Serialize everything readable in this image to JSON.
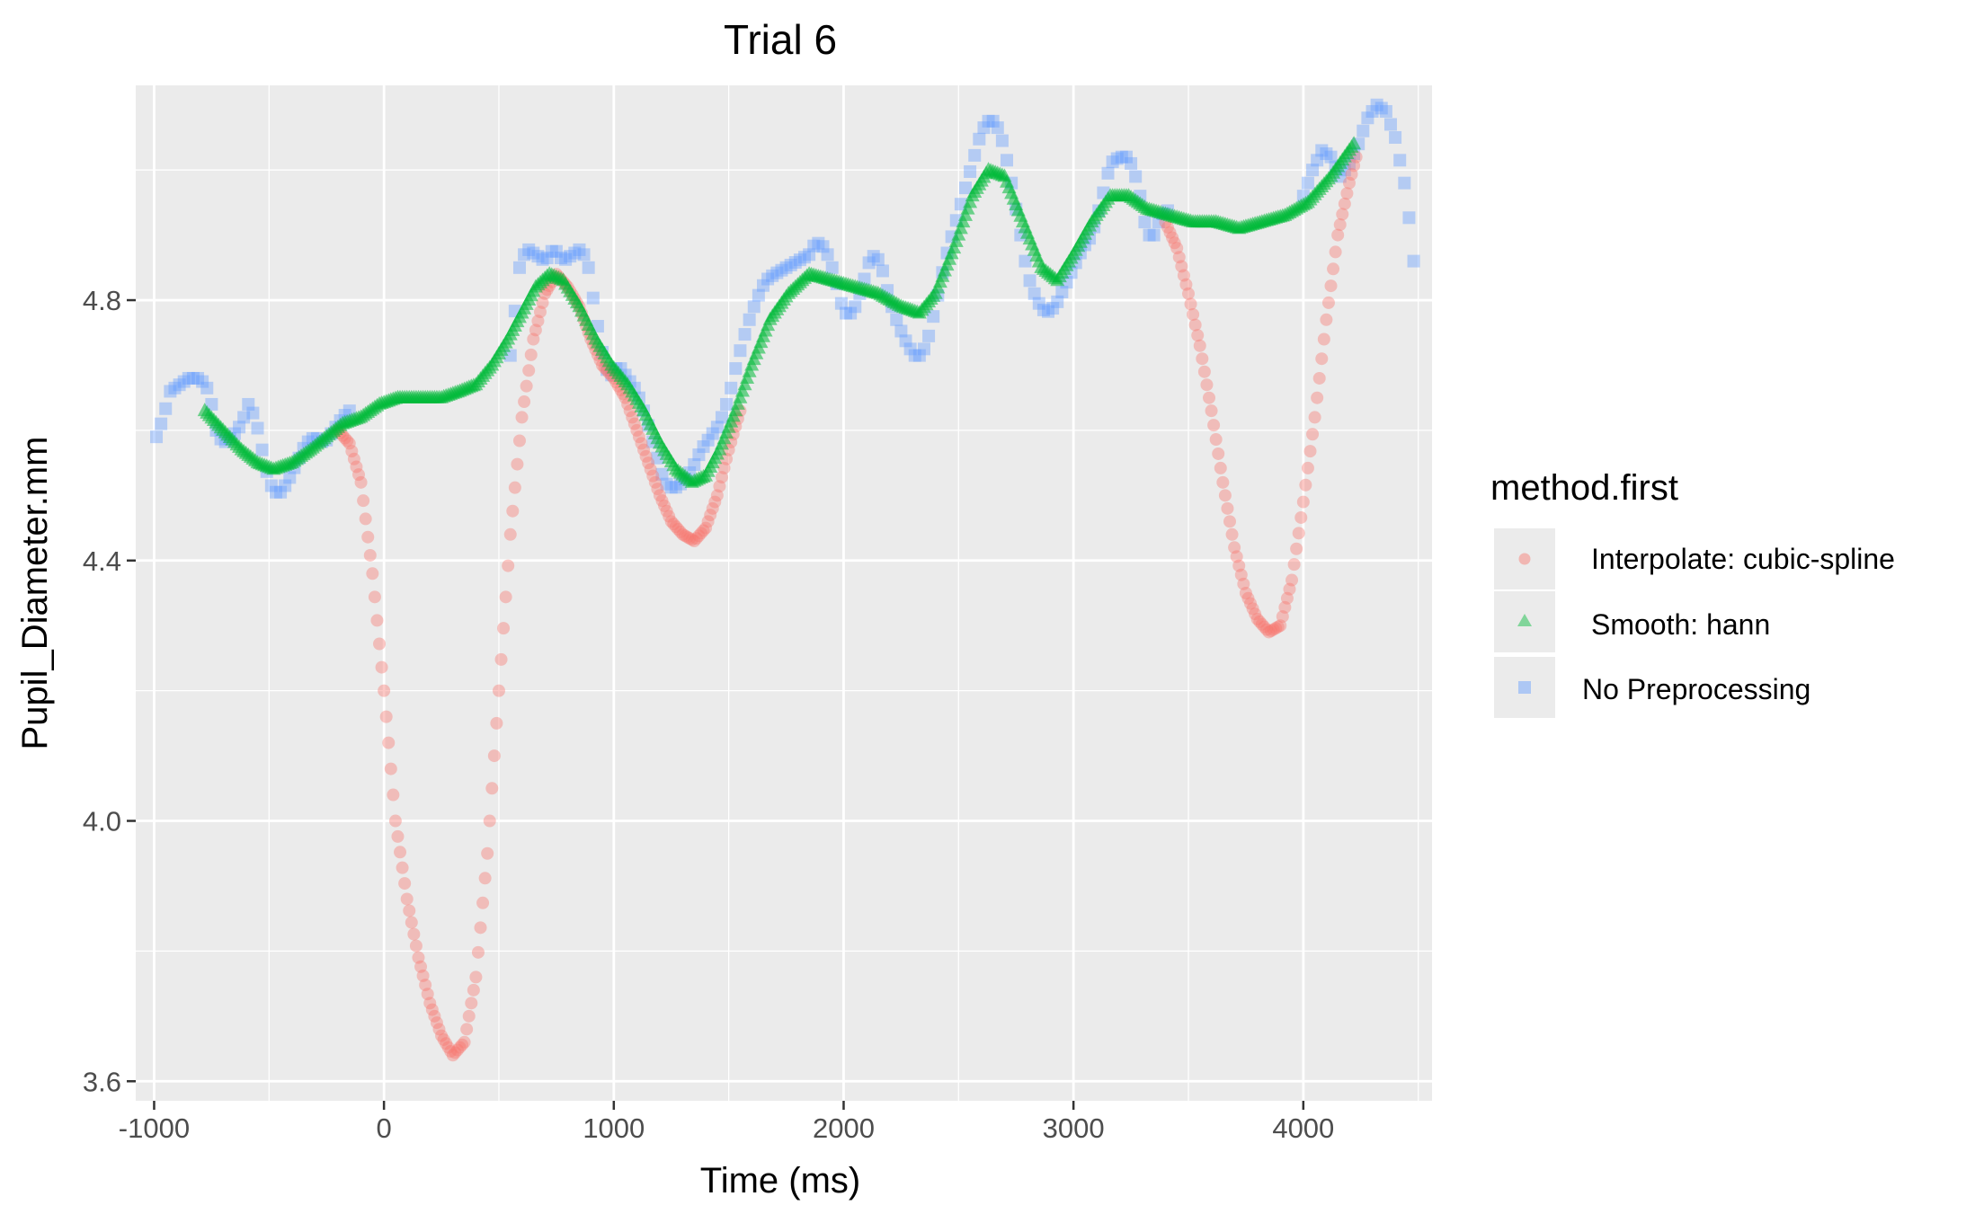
{
  "chart_data": {
    "type": "scatter",
    "title": "Trial 6",
    "xlabel": "Time (ms)",
    "ylabel": "Pupil_Diameter.mm",
    "xlim": [
      -1080,
      4560
    ],
    "ylim": [
      3.57,
      5.13
    ],
    "x_ticks": [
      -1000,
      0,
      1000,
      2000,
      3000,
      4000
    ],
    "x_tick_labels": [
      "-1000",
      "0",
      "1000",
      "2000",
      "3000",
      "4000"
    ],
    "y_ticks": [
      3.6,
      4.0,
      4.4,
      4.8
    ],
    "y_tick_labels": [
      "3.6",
      "4.0",
      "4.4",
      "4.8"
    ],
    "grid": true,
    "legend": {
      "title": "method.first",
      "position": "right",
      "entries": [
        {
          "label": "Interpolate: cubic-spline",
          "shape": "circle",
          "color": "#F8766D"
        },
        {
          "label": "Smooth: hann",
          "shape": "triangle",
          "color": "#00BA38"
        },
        {
          "label": "No Preprocessing",
          "shape": "square",
          "color": "#619CFF"
        }
      ]
    },
    "series": [
      {
        "name": "Interpolate: cubic-spline",
        "color": "#F8766D",
        "shape": "circle",
        "points": [
          [
            -200,
            4.6
          ],
          [
            -150,
            4.58
          ],
          [
            -100,
            4.52
          ],
          [
            -50,
            4.38
          ],
          [
            0,
            4.2
          ],
          [
            50,
            4.0
          ],
          [
            100,
            3.88
          ],
          [
            150,
            3.79
          ],
          [
            200,
            3.72
          ],
          [
            250,
            3.67
          ],
          [
            300,
            3.64
          ],
          [
            350,
            3.66
          ],
          [
            400,
            3.76
          ],
          [
            450,
            3.95
          ],
          [
            500,
            4.2
          ],
          [
            550,
            4.44
          ],
          [
            600,
            4.62
          ],
          [
            650,
            4.74
          ],
          [
            700,
            4.81
          ],
          [
            750,
            4.84
          ],
          [
            800,
            4.82
          ],
          [
            850,
            4.79
          ],
          [
            900,
            4.74
          ],
          [
            950,
            4.7
          ],
          [
            1000,
            4.68
          ],
          [
            1050,
            4.65
          ],
          [
            1100,
            4.6
          ],
          [
            1150,
            4.55
          ],
          [
            1200,
            4.5
          ],
          [
            1250,
            4.46
          ],
          [
            1300,
            4.44
          ],
          [
            1350,
            4.43
          ],
          [
            1400,
            4.45
          ],
          [
            1450,
            4.5
          ],
          [
            1500,
            4.57
          ],
          [
            1550,
            4.63
          ],
          [
            3400,
            4.92
          ],
          [
            3450,
            4.88
          ],
          [
            3500,
            4.81
          ],
          [
            3550,
            4.73
          ],
          [
            3600,
            4.63
          ],
          [
            3650,
            4.52
          ],
          [
            3700,
            4.42
          ],
          [
            3750,
            4.35
          ],
          [
            3800,
            4.31
          ],
          [
            3850,
            4.29
          ],
          [
            3900,
            4.3
          ],
          [
            3950,
            4.37
          ],
          [
            4000,
            4.49
          ],
          [
            4050,
            4.62
          ],
          [
            4100,
            4.77
          ],
          [
            4150,
            4.9
          ],
          [
            4200,
            4.98
          ],
          [
            4230,
            5.02
          ]
        ]
      },
      {
        "name": "Smooth: hann",
        "color": "#00BA38",
        "shape": "triangle",
        "points": [
          [
            -780,
            4.63
          ],
          [
            -700,
            4.6
          ],
          [
            -620,
            4.57
          ],
          [
            -550,
            4.55
          ],
          [
            -480,
            4.54
          ],
          [
            -400,
            4.55
          ],
          [
            -320,
            4.57
          ],
          [
            -250,
            4.59
          ],
          [
            -180,
            4.61
          ],
          [
            -100,
            4.62
          ],
          [
            -20,
            4.64
          ],
          [
            60,
            4.65
          ],
          [
            150,
            4.65
          ],
          [
            250,
            4.65
          ],
          [
            330,
            4.66
          ],
          [
            400,
            4.67
          ],
          [
            470,
            4.7
          ],
          [
            540,
            4.74
          ],
          [
            600,
            4.78
          ],
          [
            660,
            4.82
          ],
          [
            720,
            4.84
          ],
          [
            780,
            4.83
          ],
          [
            850,
            4.79
          ],
          [
            920,
            4.74
          ],
          [
            990,
            4.7
          ],
          [
            1060,
            4.67
          ],
          [
            1130,
            4.63
          ],
          [
            1200,
            4.58
          ],
          [
            1270,
            4.54
          ],
          [
            1340,
            4.52
          ],
          [
            1400,
            4.53
          ],
          [
            1460,
            4.57
          ],
          [
            1530,
            4.63
          ],
          [
            1600,
            4.7
          ],
          [
            1680,
            4.77
          ],
          [
            1760,
            4.81
          ],
          [
            1850,
            4.84
          ],
          [
            1950,
            4.83
          ],
          [
            2050,
            4.82
          ],
          [
            2150,
            4.81
          ],
          [
            2250,
            4.79
          ],
          [
            2330,
            4.78
          ],
          [
            2400,
            4.81
          ],
          [
            2480,
            4.88
          ],
          [
            2560,
            4.96
          ],
          [
            2630,
            5.0
          ],
          [
            2700,
            4.99
          ],
          [
            2780,
            4.92
          ],
          [
            2860,
            4.85
          ],
          [
            2930,
            4.83
          ],
          [
            3000,
            4.87
          ],
          [
            3080,
            4.92
          ],
          [
            3160,
            4.96
          ],
          [
            3240,
            4.96
          ],
          [
            3320,
            4.94
          ],
          [
            3420,
            4.93
          ],
          [
            3520,
            4.92
          ],
          [
            3620,
            4.92
          ],
          [
            3720,
            4.91
          ],
          [
            3820,
            4.92
          ],
          [
            3920,
            4.93
          ],
          [
            4020,
            4.95
          ],
          [
            4120,
            4.99
          ],
          [
            4220,
            5.04
          ]
        ]
      },
      {
        "name": "No Preprocessing",
        "color": "#619CFF",
        "shape": "square",
        "points": [
          [
            -990,
            4.59
          ],
          [
            -960,
            4.62
          ],
          [
            -930,
            4.66
          ],
          [
            -890,
            4.67
          ],
          [
            -850,
            4.68
          ],
          [
            -800,
            4.68
          ],
          [
            -760,
            4.66
          ],
          [
            -730,
            4.6
          ],
          [
            -700,
            4.58
          ],
          [
            -660,
            4.59
          ],
          [
            -620,
            4.61
          ],
          [
            -590,
            4.64
          ],
          [
            -560,
            4.62
          ],
          [
            -530,
            4.57
          ],
          [
            -500,
            4.52
          ],
          [
            -460,
            4.5
          ],
          [
            -420,
            4.52
          ],
          [
            -380,
            4.55
          ],
          [
            -340,
            4.58
          ],
          [
            -300,
            4.59
          ],
          [
            -260,
            4.58
          ],
          [
            -220,
            4.6
          ],
          [
            -180,
            4.62
          ],
          [
            -150,
            4.63
          ],
          [
            540,
            4.68
          ],
          [
            560,
            4.75
          ],
          [
            590,
            4.85
          ],
          [
            620,
            4.88
          ],
          [
            660,
            4.87
          ],
          [
            700,
            4.86
          ],
          [
            740,
            4.88
          ],
          [
            780,
            4.86
          ],
          [
            820,
            4.87
          ],
          [
            860,
            4.88
          ],
          [
            890,
            4.85
          ],
          [
            920,
            4.78
          ],
          [
            950,
            4.72
          ],
          [
            980,
            4.68
          ],
          [
            1020,
            4.7
          ],
          [
            1060,
            4.68
          ],
          [
            1100,
            4.66
          ],
          [
            1140,
            4.62
          ],
          [
            1180,
            4.57
          ],
          [
            1220,
            4.52
          ],
          [
            1260,
            4.51
          ],
          [
            1300,
            4.52
          ],
          [
            1340,
            4.54
          ],
          [
            1380,
            4.57
          ],
          [
            1420,
            4.59
          ],
          [
            1460,
            4.61
          ],
          [
            1500,
            4.65
          ],
          [
            1540,
            4.71
          ],
          [
            1580,
            4.76
          ],
          [
            1620,
            4.8
          ],
          [
            1660,
            4.83
          ],
          [
            1700,
            4.84
          ],
          [
            1750,
            4.85
          ],
          [
            1800,
            4.86
          ],
          [
            1850,
            4.87
          ],
          [
            1880,
            4.89
          ],
          [
            1920,
            4.88
          ],
          [
            1960,
            4.84
          ],
          [
            2000,
            4.78
          ],
          [
            2040,
            4.78
          ],
          [
            2080,
            4.82
          ],
          [
            2120,
            4.87
          ],
          [
            2160,
            4.86
          ],
          [
            2200,
            4.8
          ],
          [
            2240,
            4.76
          ],
          [
            2280,
            4.73
          ],
          [
            2320,
            4.71
          ],
          [
            2360,
            4.73
          ],
          [
            2400,
            4.79
          ],
          [
            2440,
            4.86
          ],
          [
            2480,
            4.91
          ],
          [
            2520,
            4.96
          ],
          [
            2560,
            5.01
          ],
          [
            2600,
            5.06
          ],
          [
            2640,
            5.08
          ],
          [
            2680,
            5.06
          ],
          [
            2720,
            5.0
          ],
          [
            2760,
            4.92
          ],
          [
            2800,
            4.84
          ],
          [
            2840,
            4.8
          ],
          [
            2880,
            4.78
          ],
          [
            2920,
            4.79
          ],
          [
            2960,
            4.82
          ],
          [
            3000,
            4.85
          ],
          [
            3040,
            4.88
          ],
          [
            3080,
            4.9
          ],
          [
            3120,
            4.95
          ],
          [
            3160,
            5.01
          ],
          [
            3200,
            5.02
          ],
          [
            3240,
            5.02
          ],
          [
            3280,
            4.98
          ],
          [
            3310,
            4.92
          ],
          [
            3340,
            4.89
          ],
          [
            3380,
            4.93
          ],
          [
            3420,
            4.94
          ],
          [
            4000,
            4.96
          ],
          [
            4040,
            5.0
          ],
          [
            4080,
            5.03
          ],
          [
            4120,
            5.02
          ],
          [
            4160,
            4.99
          ],
          [
            4200,
            5.01
          ],
          [
            4240,
            5.04
          ],
          [
            4280,
            5.08
          ],
          [
            4320,
            5.1
          ],
          [
            4360,
            5.09
          ],
          [
            4400,
            5.05
          ],
          [
            4440,
            4.98
          ],
          [
            4470,
            4.9
          ],
          [
            4490,
            4.82
          ]
        ]
      }
    ]
  }
}
